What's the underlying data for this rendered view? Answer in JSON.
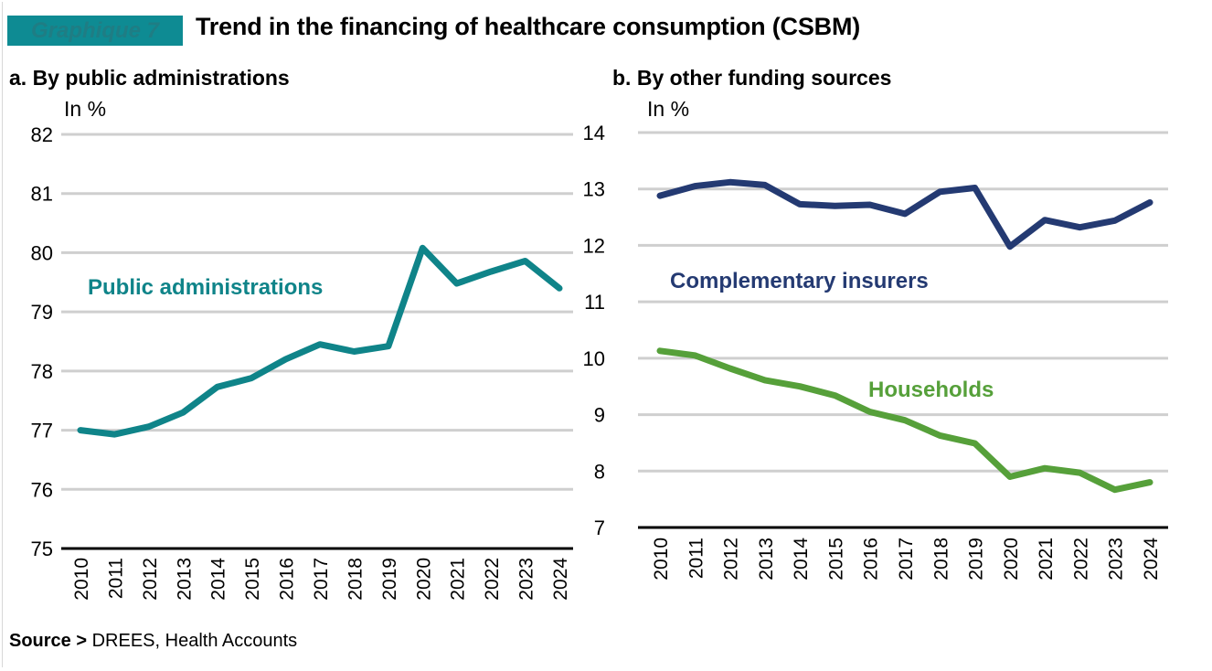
{
  "header": {
    "badge": "Graphique 7",
    "title": "Trend in the financing of healthcare consumption (CSBM)"
  },
  "source": {
    "label": "Source >",
    "text": "DREES, Health Accounts"
  },
  "colors": {
    "badge": "#0e8b93",
    "public_administrations": "#0f8489",
    "complementary_insurers": "#243a72",
    "households": "#56a03a",
    "grid": "#cfcfcf",
    "axis": "#000000"
  },
  "chart_data": [
    {
      "type": "line",
      "panel": "a",
      "title": "a. By public administrations",
      "ylabel": "In %",
      "xlabel": "",
      "ylim": [
        75,
        82
      ],
      "yticks": [
        75,
        76,
        77,
        78,
        79,
        80,
        81,
        82
      ],
      "grid": true,
      "categories": [
        "2010",
        "2011",
        "2012",
        "2013",
        "2014",
        "2015",
        "2016",
        "2017",
        "2018",
        "2019",
        "2020",
        "2021",
        "2022",
        "2023",
        "2024"
      ],
      "series": [
        {
          "name": "Public administrations",
          "color_key": "public_administrations",
          "values": [
            77.0,
            76.93,
            77.06,
            77.3,
            77.73,
            77.88,
            78.2,
            78.45,
            78.33,
            78.42,
            80.08,
            79.48,
            79.68,
            79.86,
            79.4
          ]
        }
      ]
    },
    {
      "type": "line",
      "panel": "b",
      "title": "b. By other funding sources",
      "ylabel": "In %",
      "xlabel": "",
      "ylim": [
        7,
        14
      ],
      "yticks": [
        7,
        8,
        9,
        10,
        11,
        12,
        13,
        14
      ],
      "grid": true,
      "categories": [
        "2010",
        "2011",
        "2012",
        "2013",
        "2014",
        "2015",
        "2016",
        "2017",
        "2018",
        "2019",
        "2020",
        "2021",
        "2022",
        "2023",
        "2024"
      ],
      "series": [
        {
          "name": "Complementary insurers",
          "color_key": "complementary_insurers",
          "values": [
            12.88,
            13.05,
            13.12,
            13.07,
            12.73,
            12.7,
            12.72,
            12.56,
            12.95,
            13.02,
            11.98,
            12.45,
            12.32,
            12.44,
            12.76
          ]
        },
        {
          "name": "Households",
          "color_key": "households",
          "values": [
            10.13,
            10.05,
            9.82,
            9.61,
            9.5,
            9.34,
            9.05,
            8.9,
            8.63,
            8.49,
            7.9,
            8.05,
            7.97,
            7.67,
            7.8
          ]
        }
      ]
    }
  ]
}
